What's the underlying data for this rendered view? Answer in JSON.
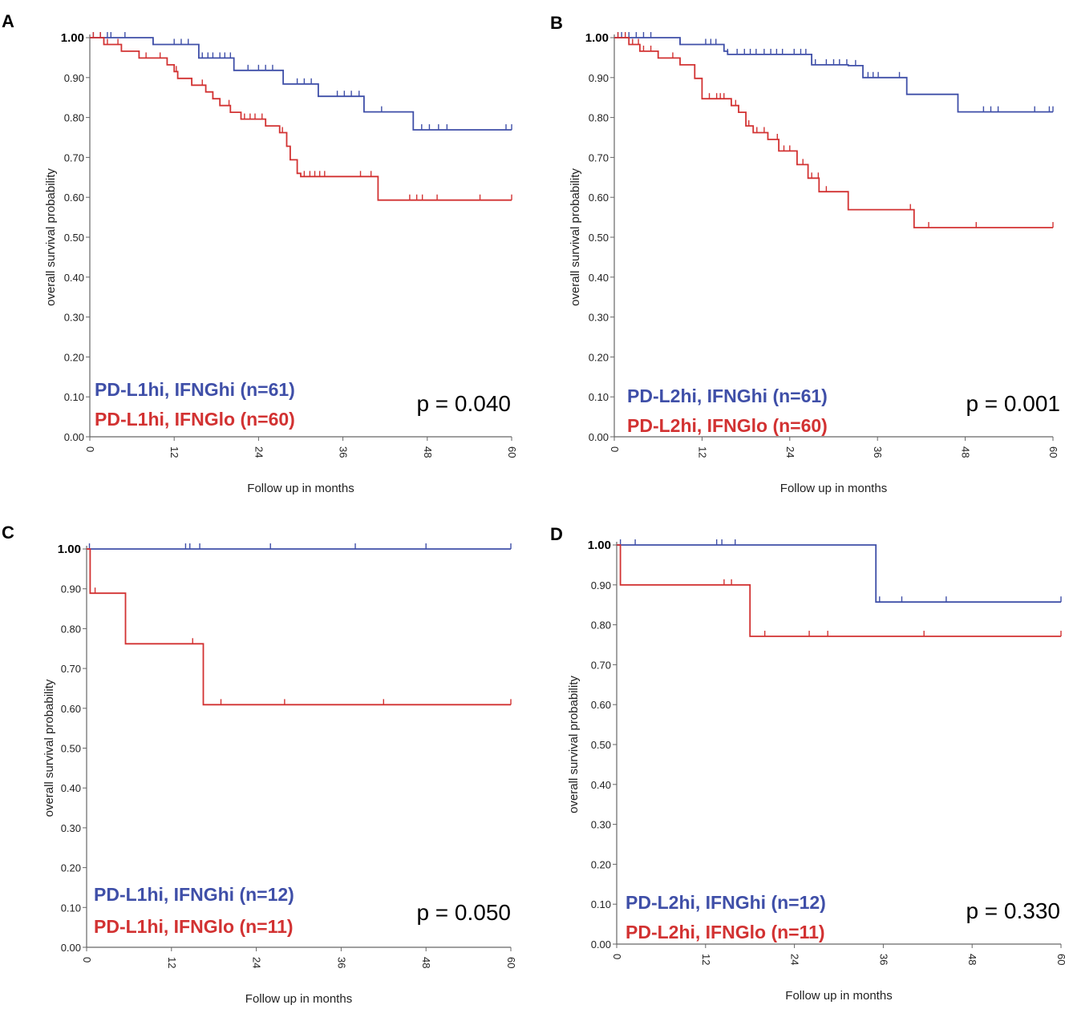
{
  "figure": {
    "colors": {
      "hi": "#3f4fa8",
      "lo": "#d23232"
    },
    "y_ticks": [
      "0.00",
      "0.10",
      "0.20",
      "0.30",
      "0.40",
      "0.50",
      "0.60",
      "0.70",
      "0.80",
      "0.90",
      "1.00"
    ],
    "x_ticks": [
      "0",
      "12",
      "24",
      "36",
      "48",
      "60"
    ]
  },
  "chart_data": [
    {
      "panel": "A",
      "type": "line",
      "step": true,
      "xlabel": "Follow up in months",
      "ylabel": "overall survival probability",
      "xlim": [
        0,
        60
      ],
      "ylim": [
        0,
        1
      ],
      "p_value": "p = 0.040",
      "series": [
        {
          "name": "PD-L1hi, IFNGhi (n=61)",
          "group": "hi",
          "steps": [
            [
              0,
              1.0
            ],
            [
              9,
              0.983
            ],
            [
              15.5,
              0.949
            ],
            [
              20.5,
              0.918
            ],
            [
              27.5,
              0.884
            ],
            [
              32.5,
              0.853
            ],
            [
              39,
              0.814
            ],
            [
              46,
              0.769
            ],
            [
              60,
              0.769
            ]
          ],
          "censors": [
            0.5,
            1.5,
            2.5,
            3,
            5,
            9,
            12,
            13,
            14,
            16,
            16.8,
            17.5,
            18.5,
            19.2,
            20,
            22.5,
            24,
            25,
            26,
            29.5,
            30.5,
            31.5,
            35.2,
            36.2,
            37.2,
            38.3,
            41.5,
            47.2,
            48.3,
            49.6,
            50.8,
            59.2,
            60
          ]
        },
        {
          "name": "PD-L1hi, IFNGlo (n=60)",
          "group": "lo",
          "steps": [
            [
              0,
              1.0
            ],
            [
              2,
              0.983
            ],
            [
              4.5,
              0.966
            ],
            [
              7,
              0.949
            ],
            [
              11,
              0.932
            ],
            [
              12,
              0.915
            ],
            [
              12.5,
              0.898
            ],
            [
              14.5,
              0.881
            ],
            [
              16.5,
              0.864
            ],
            [
              17.5,
              0.847
            ],
            [
              18.5,
              0.83
            ],
            [
              20,
              0.813
            ],
            [
              21.5,
              0.796
            ],
            [
              25,
              0.779
            ],
            [
              27,
              0.762
            ],
            [
              28,
              0.728
            ],
            [
              28.5,
              0.694
            ],
            [
              29.5,
              0.66
            ],
            [
              30,
              0.652
            ],
            [
              41,
              0.593
            ],
            [
              60,
              0.593
            ]
          ],
          "censors": [
            0.5,
            1.5,
            2.5,
            4,
            8,
            10,
            12.3,
            16,
            17.5,
            19.8,
            22,
            22.8,
            23.5,
            24.5,
            27.4,
            30.5,
            31.3,
            32,
            32.7,
            33.4,
            38.5,
            40,
            45.5,
            46.5,
            47.3,
            49.4,
            55.5,
            60
          ]
        }
      ]
    },
    {
      "panel": "B",
      "type": "line",
      "step": true,
      "xlabel": "Follow up in months",
      "ylabel": "overall survival probability",
      "xlim": [
        0,
        60
      ],
      "ylim": [
        0,
        1
      ],
      "p_value": "p = 0.001",
      "series": [
        {
          "name": "PD-L2hi, IFNGhi (n=61)",
          "group": "hi",
          "steps": [
            [
              0,
              1.0
            ],
            [
              9,
              0.983
            ],
            [
              15,
              0.966
            ],
            [
              15.5,
              0.958
            ],
            [
              27,
              0.932
            ],
            [
              30,
              0.932
            ],
            [
              32,
              0.93
            ],
            [
              34,
              0.9
            ],
            [
              40,
              0.858
            ],
            [
              47,
              0.814
            ],
            [
              60,
              0.814
            ]
          ],
          "censors": [
            0.5,
            1,
            2,
            3,
            4,
            5,
            9,
            12.5,
            13.2,
            13.9,
            15.5,
            16.8,
            17.8,
            18.6,
            19.4,
            20.5,
            21.4,
            22.2,
            23,
            24.6,
            25.5,
            26.2,
            27.5,
            29,
            30,
            30.8,
            31.8,
            33,
            34.7,
            35.4,
            36.1,
            39,
            50.5,
            51.5,
            52.5,
            57.5,
            59.5,
            60
          ]
        },
        {
          "name": "PD-L2hi, IFNGlo (n=60)",
          "group": "lo",
          "steps": [
            [
              0,
              1.0
            ],
            [
              2,
              0.983
            ],
            [
              3.5,
              0.966
            ],
            [
              6,
              0.949
            ],
            [
              9,
              0.932
            ],
            [
              11,
              0.898
            ],
            [
              12,
              0.847
            ],
            [
              16,
              0.83
            ],
            [
              17,
              0.813
            ],
            [
              18,
              0.779
            ],
            [
              19,
              0.762
            ],
            [
              21,
              0.745
            ],
            [
              22.5,
              0.716
            ],
            [
              25,
              0.682
            ],
            [
              26.5,
              0.648
            ],
            [
              28,
              0.614
            ],
            [
              32,
              0.569
            ],
            [
              41,
              0.524
            ],
            [
              60,
              0.524
            ]
          ],
          "censors": [
            0.5,
            1.5,
            2.5,
            3.3,
            4,
            5,
            8,
            13,
            14,
            14.5,
            15,
            16.6,
            18.4,
            19.5,
            20.5,
            22.3,
            23.2,
            24,
            25.8,
            27,
            27.9,
            29,
            40.5,
            43,
            49.5,
            60
          ]
        }
      ]
    },
    {
      "panel": "C",
      "type": "line",
      "step": true,
      "xlabel": "Follow up in months",
      "ylabel": "overall survival probability",
      "xlim": [
        0,
        60
      ],
      "ylim": [
        0,
        1
      ],
      "p_value": "p = 0.050",
      "series": [
        {
          "name": "PD-L1hi, IFNGhi (n=12)",
          "group": "hi",
          "steps": [
            [
              0,
              1.0
            ],
            [
              60,
              1.0
            ]
          ],
          "censors": [
            0.4,
            14,
            14.6,
            16,
            26,
            38,
            48,
            60
          ]
        },
        {
          "name": "PD-L1hi, IFNGlo (n=11)",
          "group": "lo",
          "steps": [
            [
              0,
              1.0
            ],
            [
              0.5,
              0.889
            ],
            [
              5.5,
              0.889
            ],
            [
              5.5,
              0.762
            ],
            [
              16.5,
              0.762
            ],
            [
              16.5,
              0.609
            ],
            [
              60,
              0.609
            ]
          ],
          "censors": [
            1.2,
            15,
            19,
            28,
            42,
            60
          ]
        }
      ]
    },
    {
      "panel": "D",
      "type": "line",
      "step": true,
      "xlabel": "Follow up in months",
      "ylabel": "overall survival probability",
      "xlim": [
        0,
        60
      ],
      "ylim": [
        0,
        1
      ],
      "p_value": "p = 0.330",
      "series": [
        {
          "name": "PD-L2hi, IFNGhi (n=12)",
          "group": "hi",
          "steps": [
            [
              0,
              1.0
            ],
            [
              35,
              1.0
            ],
            [
              35,
              0.857
            ],
            [
              60,
              0.857
            ]
          ],
          "censors": [
            0.5,
            2.5,
            13.5,
            14.2,
            16,
            35.5,
            38.5,
            44.5,
            60
          ]
        },
        {
          "name": "PD-L2hi, IFNGlo (n=11)",
          "group": "lo",
          "steps": [
            [
              0,
              1.0
            ],
            [
              0.5,
              0.9
            ],
            [
              18,
              0.9
            ],
            [
              18,
              0.771
            ],
            [
              60,
              0.771
            ]
          ],
          "censors": [
            14.5,
            15.5,
            20,
            26,
            28.5,
            41.5,
            60
          ]
        }
      ]
    }
  ]
}
